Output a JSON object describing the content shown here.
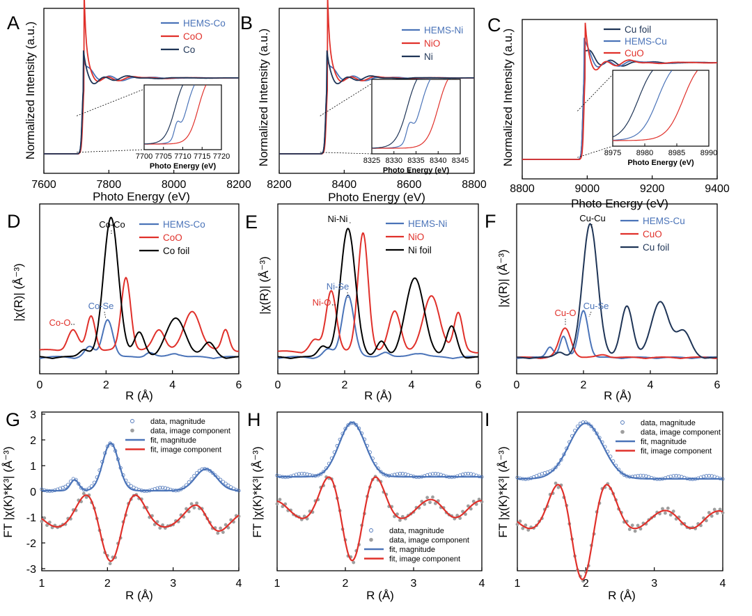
{
  "colors": {
    "blue": "#4a73b8",
    "red": "#e0302a",
    "dark": "#1e3456",
    "black": "#000000",
    "grey": "#9e9e9e"
  },
  "chart_data": [
    {
      "panel": "A",
      "type": "line",
      "xlabel": "Photo Energy (eV)",
      "ylabel": "Normalized Intensity (a.u.)",
      "xlim": [
        7600,
        8200
      ],
      "xticks": [
        "7600",
        "7800",
        "8000",
        "8200"
      ],
      "edge": 7718,
      "plateau": 1.0,
      "series": [
        {
          "name": "HEMS-Co",
          "color": "#4a73b8",
          "white_line": 1.28
        },
        {
          "name": "CoO",
          "color": "#e0302a",
          "white_line": 2.0
        },
        {
          "name": "Co",
          "color": "#1e3456",
          "white_line": 1.2
        }
      ],
      "inset": {
        "xlabel": "Photo Energy (eV)",
        "xlim": [
          7700,
          7720
        ],
        "xticks": [
          "7700",
          "7705",
          "7710",
          "7715",
          "7720"
        ],
        "edges": {
          "Co": 7708,
          "HEMS-Co": 7711,
          "CoO": 7714
        }
      }
    },
    {
      "panel": "B",
      "type": "line",
      "xlabel": "Photo Energy (eV)",
      "ylabel": "Normalized Intensity (a.u.)",
      "xlim": [
        8200,
        8800
      ],
      "xticks": [
        "8200",
        "8400",
        "8600",
        "8800"
      ],
      "edge": 8343,
      "plateau": 1.0,
      "series": [
        {
          "name": "HEMS-Ni",
          "color": "#4a73b8",
          "white_line": 1.3
        },
        {
          "name": "NiO",
          "color": "#e0302a",
          "white_line": 1.95
        },
        {
          "name": "Ni",
          "color": "#1e3456",
          "white_line": 1.2
        }
      ],
      "inset": {
        "xlabel": "Photo Energy (eV)",
        "xlim": [
          8325,
          8345
        ],
        "xticks": [
          "8325",
          "8330",
          "8335",
          "8340",
          "8345"
        ],
        "edges": {
          "Ni": 8333,
          "HEMS-Ni": 8336,
          "NiO": 8340
        }
      }
    },
    {
      "panel": "C",
      "type": "line",
      "xlabel": "Photo Energy (eV)",
      "ylabel": "Normalized Intensity (a.u.)",
      "xlim": [
        8800,
        9400
      ],
      "xticks": [
        "8800",
        "9000",
        "9200",
        "9400"
      ],
      "edge": 8987,
      "plateau": 1.0,
      "series": [
        {
          "name": "Cu foil",
          "color": "#1e3456",
          "white_line": 1.15
        },
        {
          "name": "HEMS-Cu",
          "color": "#4a73b8",
          "white_line": 1.12
        },
        {
          "name": "CuO",
          "color": "#e0302a",
          "white_line": 1.25
        }
      ],
      "inset": {
        "xlabel": "Photo Energy (eV)",
        "xlim": [
          8975,
          8990
        ],
        "xticks": [
          "8975",
          "8980",
          "8985",
          "8990"
        ],
        "edges": {
          "Cu foil": 8979,
          "HEMS-Cu": 8982,
          "CuO": 8986
        }
      }
    },
    {
      "panel": "D",
      "type": "line",
      "xlabel": "R (Å)",
      "ylabel": "|χ(R)| (Å⁻³)",
      "xlim": [
        0,
        6
      ],
      "xticks": [
        "0",
        "2",
        "4",
        "6"
      ],
      "series": [
        {
          "name": "HEMS-Co",
          "color": "#4a73b8",
          "peaks": [
            [
              1.5,
              0.25,
              0.2
            ],
            [
              2.05,
              0.95,
              0.22
            ],
            [
              3.3,
              0.12,
              0.2
            ],
            [
              4.1,
              0.1,
              0.25
            ]
          ]
        },
        {
          "name": "CoO",
          "color": "#e0302a",
          "peaks": [
            [
              1.0,
              0.5,
              0.22
            ],
            [
              1.55,
              0.85,
              0.18
            ],
            [
              2.6,
              1.8,
              0.2
            ],
            [
              3.6,
              0.5,
              0.25
            ],
            [
              4.6,
              0.95,
              0.35
            ],
            [
              5.6,
              0.5,
              0.15
            ]
          ]
        },
        {
          "name": "Co foil",
          "color": "#000000",
          "peaks": [
            [
              1.35,
              0.2,
              0.2
            ],
            [
              2.15,
              3.45,
              0.32
            ],
            [
              3.0,
              0.6,
              0.22
            ],
            [
              4.1,
              0.95,
              0.42
            ],
            [
              5.1,
              0.35,
              0.25
            ]
          ]
        }
      ],
      "annotations": [
        "Co-Co",
        "Co-Se",
        "Co-O"
      ]
    },
    {
      "panel": "E",
      "type": "line",
      "xlabel": "R (Å)",
      "ylabel": "|χ(R)| (Å⁻³)",
      "xlim": [
        0,
        6
      ],
      "xticks": [
        "0",
        "2",
        "4",
        "6"
      ],
      "series": [
        {
          "name": "HEMS-Ni",
          "color": "#4a73b8",
          "peaks": [
            [
              1.5,
              0.2,
              0.2
            ],
            [
              2.1,
              1.65,
              0.25
            ],
            [
              3.2,
              0.15,
              0.2
            ],
            [
              4.2,
              0.12,
              0.3
            ]
          ]
        },
        {
          "name": "NiO",
          "color": "#e0302a",
          "peaks": [
            [
              1.1,
              0.3,
              0.2
            ],
            [
              1.6,
              1.6,
              0.22
            ],
            [
              2.55,
              3.1,
              0.22
            ],
            [
              3.5,
              1.05,
              0.25
            ],
            [
              4.6,
              1.45,
              0.35
            ],
            [
              5.4,
              1.0,
              0.18
            ]
          ]
        },
        {
          "name": "Ni foil",
          "color": "#000000",
          "peaks": [
            [
              1.35,
              0.3,
              0.2
            ],
            [
              2.1,
              3.35,
              0.32
            ],
            [
              3.1,
              0.4,
              0.2
            ],
            [
              4.1,
              2.05,
              0.4
            ],
            [
              5.2,
              0.8,
              0.22
            ]
          ]
        }
      ],
      "annotations": [
        "Ni-Ni",
        "Ni-Se",
        "Ni-O"
      ]
    },
    {
      "panel": "F",
      "type": "line",
      "xlabel": "R (Å)",
      "ylabel": "|χ(R)| (Å⁻³)",
      "xlim": [
        0,
        6
      ],
      "xticks": [
        "0",
        "2",
        "4",
        "6"
      ],
      "series": [
        {
          "name": "HEMS-Cu",
          "color": "#4a73b8",
          "peaks": [
            [
              1.0,
              0.4,
              0.15
            ],
            [
              1.4,
              0.75,
              0.15
            ],
            [
              2.0,
              1.7,
              0.2
            ]
          ]
        },
        {
          "name": "CuO",
          "color": "#e0302a",
          "peaks": [
            [
              1.45,
              1.05,
              0.25
            ],
            [
              2.6,
              0.1,
              0.25
            ]
          ]
        },
        {
          "name": "Cu foil",
          "color": "#1e3456",
          "peaks": [
            [
              1.3,
              0.2,
              0.2
            ],
            [
              2.2,
              4.8,
              0.32
            ],
            [
              3.3,
              1.85,
              0.25
            ],
            [
              4.3,
              2.0,
              0.38
            ],
            [
              5.0,
              0.9,
              0.3
            ]
          ]
        }
      ],
      "annotations": [
        "Cu-Cu",
        "Cu-O",
        "Cu-Se"
      ]
    },
    {
      "panel": "G",
      "type": "line",
      "xlabel": "R (Å)",
      "ylabel": "FT |χ(K)*K³| (Å⁻³)",
      "xlim": [
        1,
        4
      ],
      "ylim": [
        -3,
        3
      ],
      "xticks": [
        "1",
        "2",
        "3",
        "4"
      ],
      "yticks": [
        "3",
        "2",
        "1",
        "0",
        "-1",
        "-2",
        "-3"
      ],
      "series": [
        {
          "name": "data, magnitude",
          "color": "#4a73b8",
          "style": "open-circles"
        },
        {
          "name": "data, image component",
          "color": "#9e9e9e",
          "style": "filled-circles"
        },
        {
          "name": "fit, magnitude",
          "color": "#4a73b8",
          "style": "line",
          "peaks": [
            [
              1.5,
              0.4,
              0.09
            ],
            [
              2.05,
              1.75,
              0.17
            ],
            [
              3.5,
              0.8,
              0.23
            ]
          ]
        },
        {
          "name": "fit, image component",
          "color": "#e0302a",
          "style": "line",
          "offset": -1.1,
          "amplitude": 1.5,
          "center": 2.05,
          "period": 0.42
        }
      ]
    },
    {
      "panel": "H",
      "type": "line",
      "xlabel": "R (Å)",
      "ylabel": "FT |χ(K)*K³| (Å⁻³)",
      "xlim": [
        1,
        4
      ],
      "xticks": [
        "1",
        "2",
        "3",
        "4"
      ],
      "series": [
        {
          "name": "data, magnitude",
          "color": "#4a73b8",
          "style": "open-circles"
        },
        {
          "name": "data, image component",
          "color": "#9e9e9e",
          "style": "filled-circles"
        },
        {
          "name": "fit, magnitude",
          "color": "#4a73b8",
          "style": "line",
          "peaks": [
            [
              2.1,
              1.95,
              0.27
            ]
          ]
        },
        {
          "name": "fit, image component",
          "color": "#e0302a",
          "style": "line",
          "offset": -0.6,
          "amplitude": 1.85,
          "center": 2.1,
          "period": 0.38
        }
      ]
    },
    {
      "panel": "I",
      "type": "line",
      "xlabel": "R (Å)",
      "ylabel": "FT |χ(K)*K³| (Å⁻³)",
      "xlim": [
        1,
        4
      ],
      "xticks": [
        "1",
        "2",
        "3",
        "4"
      ],
      "series": [
        {
          "name": "data, magnitude",
          "color": "#4a73b8",
          "style": "open-circles"
        },
        {
          "name": "data, image component",
          "color": "#9e9e9e",
          "style": "filled-circles"
        },
        {
          "name": "fit, magnitude",
          "color": "#4a73b8",
          "style": "line",
          "peaks": [
            [
              2.0,
              2.0,
              0.35
            ]
          ]
        },
        {
          "name": "fit, image component",
          "color": "#e0302a",
          "style": "line",
          "offset": -1.2,
          "amplitude": 2.2,
          "center": 1.95,
          "period": 0.4
        }
      ]
    }
  ]
}
